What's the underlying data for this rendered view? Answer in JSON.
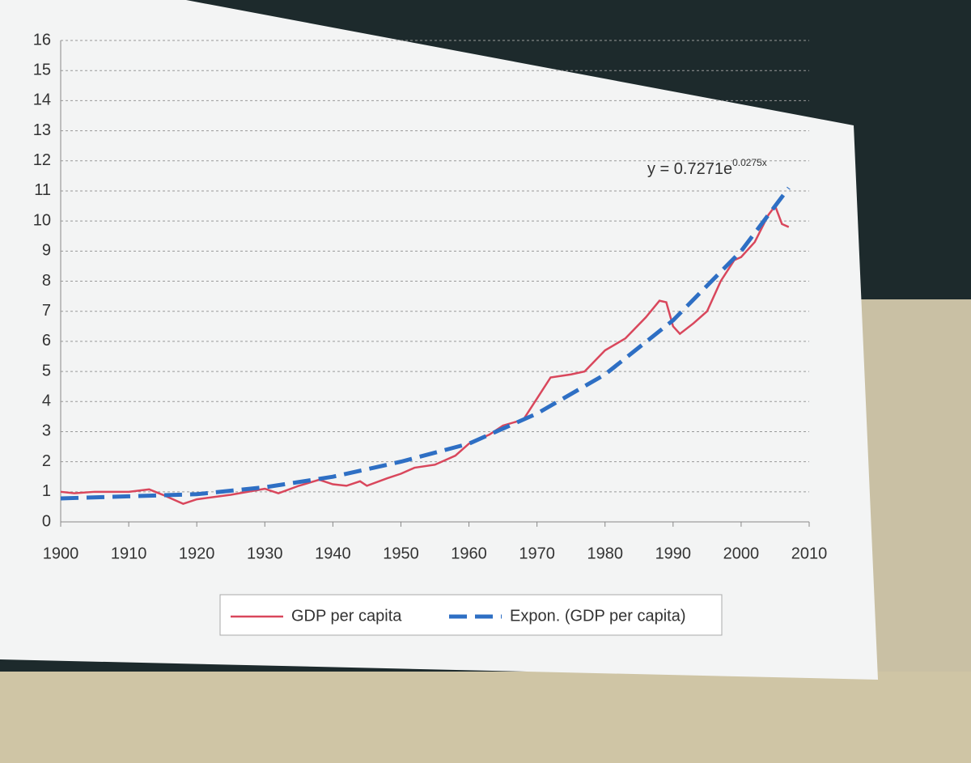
{
  "chart_data": {
    "type": "line",
    "annotation": {
      "text": "y = 0.7271e",
      "exponent": "0.0275x"
    },
    "xlim": [
      1900,
      2010
    ],
    "xticks": [
      1900,
      1910,
      1920,
      1930,
      1940,
      1950,
      1960,
      1970,
      1980,
      1990,
      2000,
      2010
    ],
    "ylim": [
      0,
      16
    ],
    "yticks": [
      0,
      1,
      2,
      3,
      4,
      5,
      6,
      7,
      8,
      9,
      10,
      11,
      12,
      13,
      14,
      15,
      16
    ],
    "grid": true,
    "legend": "bottom",
    "series": [
      {
        "name": "GDP per capita",
        "color": "#d9475c",
        "dash": false,
        "x": [
          1900,
          1902,
          1905,
          1910,
          1913,
          1915,
          1918,
          1920,
          1925,
          1930,
          1932,
          1935,
          1938,
          1940,
          1942,
          1944,
          1945,
          1948,
          1950,
          1952,
          1955,
          1958,
          1960,
          1963,
          1965,
          1968,
          1970,
          1972,
          1975,
          1977,
          1980,
          1983,
          1986,
          1988,
          1989,
          1990,
          1991,
          1993,
          1995,
          1997,
          1999,
          2000,
          2002,
          2004,
          2005,
          2006,
          2007
        ],
        "values": [
          1.0,
          0.95,
          1.0,
          1.0,
          1.08,
          0.9,
          0.6,
          0.75,
          0.9,
          1.1,
          0.95,
          1.2,
          1.4,
          1.25,
          1.2,
          1.35,
          1.2,
          1.45,
          1.6,
          1.8,
          1.9,
          2.2,
          2.6,
          2.9,
          3.2,
          3.4,
          4.1,
          4.8,
          4.9,
          5.0,
          5.7,
          6.1,
          6.8,
          7.35,
          7.3,
          6.5,
          6.25,
          6.6,
          7.0,
          8.0,
          8.7,
          8.8,
          9.3,
          10.2,
          10.5,
          9.9,
          9.8
        ]
      },
      {
        "name": "Expon. (GDP per capita)",
        "color": "#2e6fc4",
        "dash": true,
        "x": [
          1900,
          1910,
          1920,
          1930,
          1940,
          1950,
          1960,
          1970,
          1980,
          1990,
          2000,
          2007
        ],
        "values": [
          0.78,
          0.85,
          0.92,
          1.15,
          1.5,
          2.0,
          2.6,
          3.6,
          4.9,
          6.7,
          9.0,
          11.1
        ]
      }
    ]
  }
}
